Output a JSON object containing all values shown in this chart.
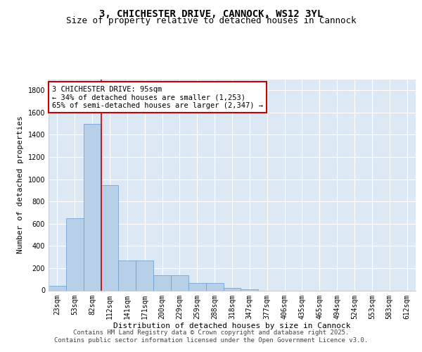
{
  "title": "3, CHICHESTER DRIVE, CANNOCK, WS12 3YL",
  "subtitle": "Size of property relative to detached houses in Cannock",
  "xlabel": "Distribution of detached houses by size in Cannock",
  "ylabel": "Number of detached properties",
  "categories": [
    "23sqm",
    "53sqm",
    "82sqm",
    "112sqm",
    "141sqm",
    "171sqm",
    "200sqm",
    "229sqm",
    "259sqm",
    "288sqm",
    "318sqm",
    "347sqm",
    "377sqm",
    "406sqm",
    "435sqm",
    "465sqm",
    "494sqm",
    "524sqm",
    "553sqm",
    "583sqm",
    "612sqm"
  ],
  "values": [
    40,
    650,
    1500,
    950,
    270,
    270,
    135,
    135,
    65,
    65,
    20,
    10,
    0,
    0,
    0,
    0,
    0,
    0,
    0,
    0,
    0
  ],
  "bar_color": "#b8cfe8",
  "bar_edge_color": "#6699cc",
  "background_color": "#dde8f5",
  "grid_color": "#ffffff",
  "annotation_text": "3 CHICHESTER DRIVE: 95sqm\n← 34% of detached houses are smaller (1,253)\n65% of semi-detached houses are larger (2,347) →",
  "annotation_box_color": "#ffffff",
  "annotation_box_edge_color": "#cc0000",
  "vline_color": "#cc0000",
  "vline_x": 2.5,
  "ylim": [
    0,
    1900
  ],
  "yticks": [
    0,
    200,
    400,
    600,
    800,
    1000,
    1200,
    1400,
    1600,
    1800
  ],
  "footer_line1": "Contains HM Land Registry data © Crown copyright and database right 2025.",
  "footer_line2": "Contains public sector information licensed under the Open Government Licence v3.0.",
  "title_fontsize": 10,
  "subtitle_fontsize": 9,
  "xlabel_fontsize": 8,
  "ylabel_fontsize": 8,
  "tick_fontsize": 7,
  "annotation_fontsize": 7.5,
  "footer_fontsize": 6.5
}
